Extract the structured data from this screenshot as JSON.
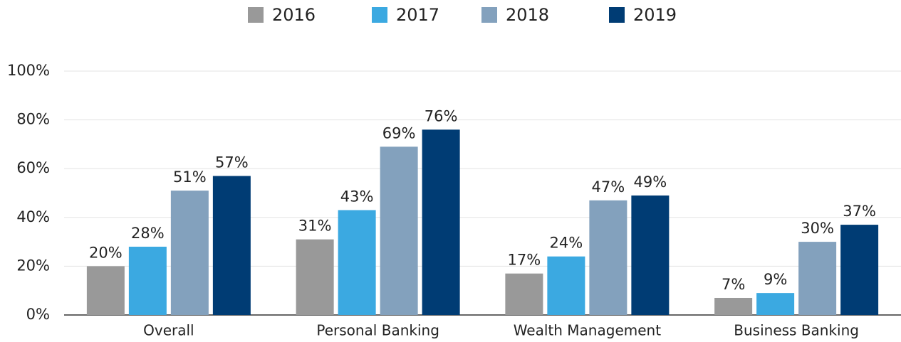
{
  "chart_data": {
    "type": "bar",
    "categories": [
      "Overall",
      "Personal Banking",
      "Wealth Management",
      "Business Banking"
    ],
    "series": [
      {
        "name": "2016",
        "color": "#999999",
        "values": [
          20,
          31,
          17,
          7
        ],
        "value_labels": [
          "20%",
          "31%",
          "17%",
          "7%"
        ]
      },
      {
        "name": "2017",
        "color": "#3ba9e1",
        "values": [
          28,
          43,
          24,
          9
        ],
        "value_labels": [
          "28%",
          "43%",
          "24%",
          "9%"
        ]
      },
      {
        "name": "2018",
        "color": "#83a1bd",
        "values": [
          51,
          69,
          47,
          30
        ],
        "value_labels": [
          "51%",
          "69%",
          "47%",
          "30%"
        ]
      },
      {
        "name": "2019",
        "color": "#003c74",
        "values": [
          57,
          76,
          49,
          37
        ],
        "value_labels": [
          "57%",
          "76%",
          "49%",
          "37%"
        ]
      }
    ],
    "ylim": [
      0,
      100
    ],
    "yticks": [
      {
        "value": 0,
        "label": "0%"
      },
      {
        "value": 20,
        "label": "20%"
      },
      {
        "value": 40,
        "label": "40%"
      },
      {
        "value": 60,
        "label": "60%"
      },
      {
        "value": 80,
        "label": "80%"
      },
      {
        "value": 100,
        "label": "100%"
      }
    ],
    "grid": true,
    "legend": "top"
  }
}
